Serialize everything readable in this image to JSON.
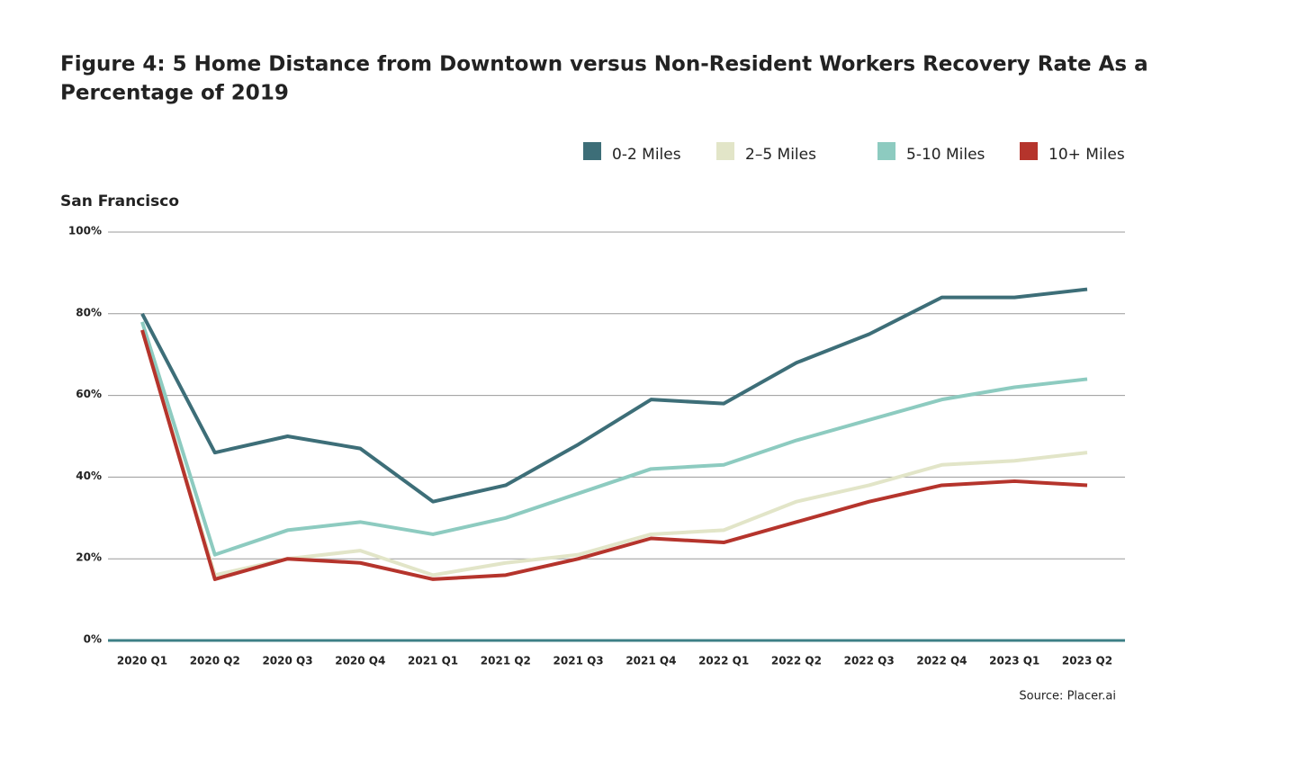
{
  "chart_data": {
    "type": "line",
    "title_lines": [
      "Figure 4: 5 Home Distance from Downtown versus Non-Resident Workers Recovery Rate As a",
      "Percentage of 2019"
    ],
    "subtitle": "San Francisco",
    "source": "Source: Placer.ai",
    "categories": [
      "2020 Q1",
      "2020 Q2",
      "2020 Q3",
      "2020 Q4",
      "2021 Q1",
      "2021 Q2",
      "2021 Q3",
      "2021 Q4",
      "2022 Q1",
      "2022 Q2",
      "2022 Q3",
      "2022 Q4",
      "2023 Q1",
      "2023 Q2"
    ],
    "series": [
      {
        "name": "0-2 Miles",
        "color": "#3d6e78",
        "values": [
          80,
          46,
          50,
          47,
          34,
          38,
          48,
          59,
          58,
          68,
          75,
          84,
          84,
          86
        ]
      },
      {
        "name": "2–5 Miles",
        "color": "#e2e5c8",
        "values": [
          76,
          16,
          20,
          22,
          16,
          19,
          21,
          26,
          27,
          34,
          38,
          43,
          44,
          46
        ]
      },
      {
        "name": "5-10 Miles",
        "color": "#8dcbc0",
        "values": [
          78,
          21,
          27,
          29,
          26,
          30,
          36,
          42,
          43,
          49,
          54,
          59,
          62,
          64
        ]
      },
      {
        "name": "10+ Miles",
        "color": "#b5342c",
        "values": [
          76,
          15,
          20,
          19,
          15,
          16,
          20,
          25,
          24,
          29,
          34,
          38,
          39,
          38
        ]
      }
    ],
    "ylim": [
      0,
      100
    ],
    "yticks": [
      {
        "value": 0,
        "label": "0%"
      },
      {
        "value": 20,
        "label": "20%"
      },
      {
        "value": 40,
        "label": "40%"
      },
      {
        "value": 60,
        "label": "60%"
      },
      {
        "value": 80,
        "label": "80%"
      },
      {
        "value": 100,
        "label": "100%"
      }
    ],
    "grid": true
  }
}
